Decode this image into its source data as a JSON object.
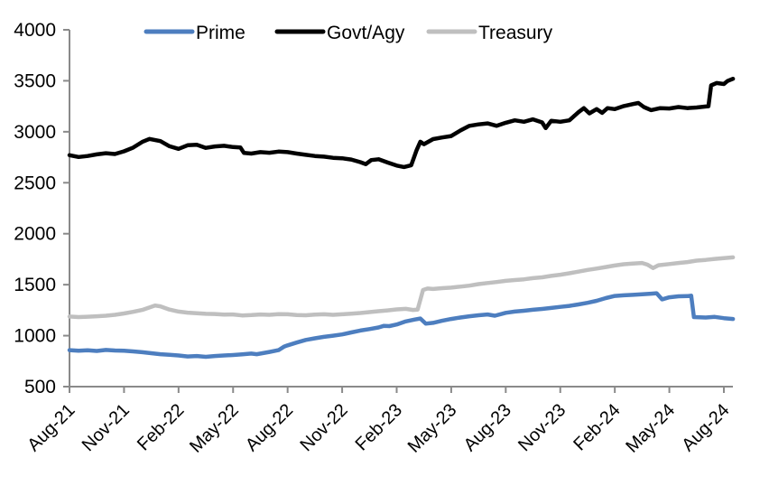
{
  "chart_data": {
    "type": "line",
    "title": "",
    "xlabel": "",
    "ylabel": "",
    "grid": false,
    "legend": {
      "position": "top",
      "entries": [
        "Prime",
        "Govt/Agy",
        "Treasury"
      ]
    },
    "axis_color": "#8a8a8a",
    "text_color": "#000000",
    "x_axis": {
      "tick_labels": [
        "Aug-21",
        "Nov-21",
        "Feb-22",
        "May-22",
        "Aug-22",
        "Nov-22",
        "Feb-23",
        "May-23",
        "Aug-23",
        "Nov-23",
        "Feb-24",
        "May-24",
        "Aug-24"
      ],
      "tick_positions_months": [
        0,
        3,
        6,
        9,
        12,
        15,
        18,
        21,
        24,
        27,
        30,
        33,
        36
      ],
      "range_months": [
        0,
        36.5
      ]
    },
    "y_axis": {
      "ticks": [
        500,
        1000,
        1500,
        2000,
        2500,
        3000,
        3500,
        4000
      ],
      "range": [
        500,
        4000
      ]
    },
    "series": [
      {
        "name": "Prime",
        "color": "#4d7ebf",
        "points": [
          [
            0,
            858
          ],
          [
            0.5,
            852
          ],
          [
            1,
            856
          ],
          [
            1.5,
            850
          ],
          [
            2,
            860
          ],
          [
            2.5,
            854
          ],
          [
            3,
            852
          ],
          [
            3.5,
            846
          ],
          [
            4,
            838
          ],
          [
            4.5,
            828
          ],
          [
            5,
            818
          ],
          [
            5.5,
            812
          ],
          [
            6,
            806
          ],
          [
            6.5,
            796
          ],
          [
            7,
            800
          ],
          [
            7.5,
            792
          ],
          [
            8,
            800
          ],
          [
            8.5,
            806
          ],
          [
            9,
            810
          ],
          [
            9.5,
            816
          ],
          [
            10,
            824
          ],
          [
            10.3,
            818
          ],
          [
            11,
            840
          ],
          [
            11.5,
            858
          ],
          [
            11.8,
            892
          ],
          [
            12,
            905
          ],
          [
            12.5,
            932
          ],
          [
            13,
            958
          ],
          [
            13.5,
            974
          ],
          [
            14,
            988
          ],
          [
            14.5,
            1000
          ],
          [
            15,
            1012
          ],
          [
            15.5,
            1032
          ],
          [
            16,
            1050
          ],
          [
            16.5,
            1064
          ],
          [
            17,
            1080
          ],
          [
            17.3,
            1096
          ],
          [
            17.6,
            1094
          ],
          [
            18,
            1110
          ],
          [
            18.5,
            1140
          ],
          [
            19,
            1158
          ],
          [
            19.3,
            1168
          ],
          [
            19.6,
            1118
          ],
          [
            20,
            1126
          ],
          [
            20.5,
            1146
          ],
          [
            21,
            1164
          ],
          [
            21.5,
            1178
          ],
          [
            22,
            1190
          ],
          [
            22.5,
            1200
          ],
          [
            23,
            1208
          ],
          [
            23.4,
            1196
          ],
          [
            24,
            1224
          ],
          [
            24.5,
            1236
          ],
          [
            25,
            1244
          ],
          [
            25.5,
            1254
          ],
          [
            26,
            1262
          ],
          [
            26.5,
            1272
          ],
          [
            27,
            1282
          ],
          [
            27.5,
            1292
          ],
          [
            28,
            1306
          ],
          [
            28.5,
            1322
          ],
          [
            29,
            1342
          ],
          [
            29.5,
            1368
          ],
          [
            30,
            1390
          ],
          [
            30.5,
            1396
          ],
          [
            31,
            1400
          ],
          [
            31.5,
            1406
          ],
          [
            32,
            1412
          ],
          [
            32.3,
            1416
          ],
          [
            32.6,
            1356
          ],
          [
            33,
            1376
          ],
          [
            33.5,
            1386
          ],
          [
            34,
            1388
          ],
          [
            34.2,
            1392
          ],
          [
            34.35,
            1182
          ],
          [
            35,
            1178
          ],
          [
            35.5,
            1184
          ],
          [
            36,
            1172
          ],
          [
            36.5,
            1164
          ]
        ]
      },
      {
        "name": "Govt/Agy",
        "color": "#000000",
        "points": [
          [
            0,
            2770
          ],
          [
            0.5,
            2752
          ],
          [
            1,
            2762
          ],
          [
            1.5,
            2778
          ],
          [
            2,
            2790
          ],
          [
            2.5,
            2782
          ],
          [
            3,
            2808
          ],
          [
            3.5,
            2845
          ],
          [
            4,
            2900
          ],
          [
            4.4,
            2930
          ],
          [
            5,
            2908
          ],
          [
            5.5,
            2858
          ],
          [
            6,
            2832
          ],
          [
            6.5,
            2868
          ],
          [
            7,
            2872
          ],
          [
            7.5,
            2842
          ],
          [
            8,
            2856
          ],
          [
            8.5,
            2862
          ],
          [
            9,
            2850
          ],
          [
            9.4,
            2846
          ],
          [
            9.6,
            2792
          ],
          [
            10,
            2786
          ],
          [
            10.5,
            2800
          ],
          [
            11,
            2794
          ],
          [
            11.5,
            2806
          ],
          [
            12,
            2800
          ],
          [
            12.5,
            2786
          ],
          [
            13,
            2774
          ],
          [
            13.5,
            2762
          ],
          [
            14,
            2756
          ],
          [
            14.5,
            2744
          ],
          [
            15,
            2740
          ],
          [
            15.5,
            2728
          ],
          [
            16,
            2702
          ],
          [
            16.3,
            2682
          ],
          [
            16.6,
            2722
          ],
          [
            17,
            2730
          ],
          [
            17.5,
            2698
          ],
          [
            18,
            2668
          ],
          [
            18.4,
            2654
          ],
          [
            18.8,
            2672
          ],
          [
            19.1,
            2822
          ],
          [
            19.3,
            2902
          ],
          [
            19.5,
            2878
          ],
          [
            20,
            2928
          ],
          [
            20.5,
            2944
          ],
          [
            21,
            2958
          ],
          [
            21.5,
            3012
          ],
          [
            22,
            3058
          ],
          [
            22.5,
            3072
          ],
          [
            23,
            3082
          ],
          [
            23.5,
            3058
          ],
          [
            24,
            3088
          ],
          [
            24.5,
            3112
          ],
          [
            25,
            3098
          ],
          [
            25.5,
            3122
          ],
          [
            26,
            3092
          ],
          [
            26.2,
            3036
          ],
          [
            26.5,
            3108
          ],
          [
            27,
            3098
          ],
          [
            27.5,
            3112
          ],
          [
            28,
            3192
          ],
          [
            28.3,
            3232
          ],
          [
            28.6,
            3180
          ],
          [
            29,
            3222
          ],
          [
            29.3,
            3186
          ],
          [
            29.6,
            3232
          ],
          [
            30,
            3222
          ],
          [
            30.5,
            3252
          ],
          [
            31,
            3272
          ],
          [
            31.3,
            3282
          ],
          [
            31.6,
            3242
          ],
          [
            32,
            3212
          ],
          [
            32.5,
            3232
          ],
          [
            33,
            3228
          ],
          [
            33.5,
            3242
          ],
          [
            34,
            3232
          ],
          [
            34.5,
            3238
          ],
          [
            35,
            3248
          ],
          [
            35.15,
            3250
          ],
          [
            35.3,
            3455
          ],
          [
            35.6,
            3478
          ],
          [
            36,
            3468
          ],
          [
            36.2,
            3498
          ],
          [
            36.5,
            3520
          ]
        ]
      },
      {
        "name": "Treasury",
        "color": "#bfbfbf",
        "points": [
          [
            0,
            1188
          ],
          [
            0.5,
            1182
          ],
          [
            1,
            1186
          ],
          [
            1.5,
            1190
          ],
          [
            2,
            1196
          ],
          [
            2.5,
            1204
          ],
          [
            3,
            1218
          ],
          [
            3.5,
            1234
          ],
          [
            4,
            1252
          ],
          [
            4.7,
            1296
          ],
          [
            5,
            1288
          ],
          [
            5.5,
            1256
          ],
          [
            6,
            1236
          ],
          [
            6.5,
            1226
          ],
          [
            7,
            1220
          ],
          [
            7.5,
            1214
          ],
          [
            8,
            1212
          ],
          [
            8.5,
            1206
          ],
          [
            9,
            1208
          ],
          [
            9.5,
            1198
          ],
          [
            10,
            1202
          ],
          [
            10.5,
            1208
          ],
          [
            11,
            1204
          ],
          [
            11.5,
            1211
          ],
          [
            12,
            1210
          ],
          [
            12.5,
            1202
          ],
          [
            13,
            1200
          ],
          [
            13.5,
            1207
          ],
          [
            14,
            1210
          ],
          [
            14.5,
            1204
          ],
          [
            15,
            1210
          ],
          [
            15.5,
            1216
          ],
          [
            16,
            1222
          ],
          [
            16.5,
            1231
          ],
          [
            17,
            1240
          ],
          [
            17.5,
            1248
          ],
          [
            18,
            1258
          ],
          [
            18.5,
            1263
          ],
          [
            18.9,
            1252
          ],
          [
            19.15,
            1256
          ],
          [
            19.45,
            1448
          ],
          [
            19.7,
            1462
          ],
          [
            20,
            1458
          ],
          [
            20.5,
            1466
          ],
          [
            21,
            1471
          ],
          [
            21.5,
            1481
          ],
          [
            22,
            1491
          ],
          [
            22.5,
            1506
          ],
          [
            23,
            1516
          ],
          [
            23.5,
            1526
          ],
          [
            24,
            1538
          ],
          [
            24.5,
            1546
          ],
          [
            25,
            1553
          ],
          [
            25.5,
            1564
          ],
          [
            26,
            1572
          ],
          [
            26.5,
            1586
          ],
          [
            27,
            1598
          ],
          [
            27.5,
            1612
          ],
          [
            28,
            1628
          ],
          [
            28.5,
            1645
          ],
          [
            29,
            1658
          ],
          [
            29.5,
            1673
          ],
          [
            30,
            1688
          ],
          [
            30.5,
            1701
          ],
          [
            31,
            1708
          ],
          [
            31.5,
            1713
          ],
          [
            31.8,
            1696
          ],
          [
            32.1,
            1663
          ],
          [
            32.4,
            1691
          ],
          [
            33,
            1702
          ],
          [
            33.5,
            1713
          ],
          [
            34,
            1722
          ],
          [
            34.5,
            1736
          ],
          [
            35,
            1743
          ],
          [
            35.5,
            1753
          ],
          [
            36,
            1761
          ],
          [
            36.5,
            1768
          ]
        ]
      }
    ]
  }
}
